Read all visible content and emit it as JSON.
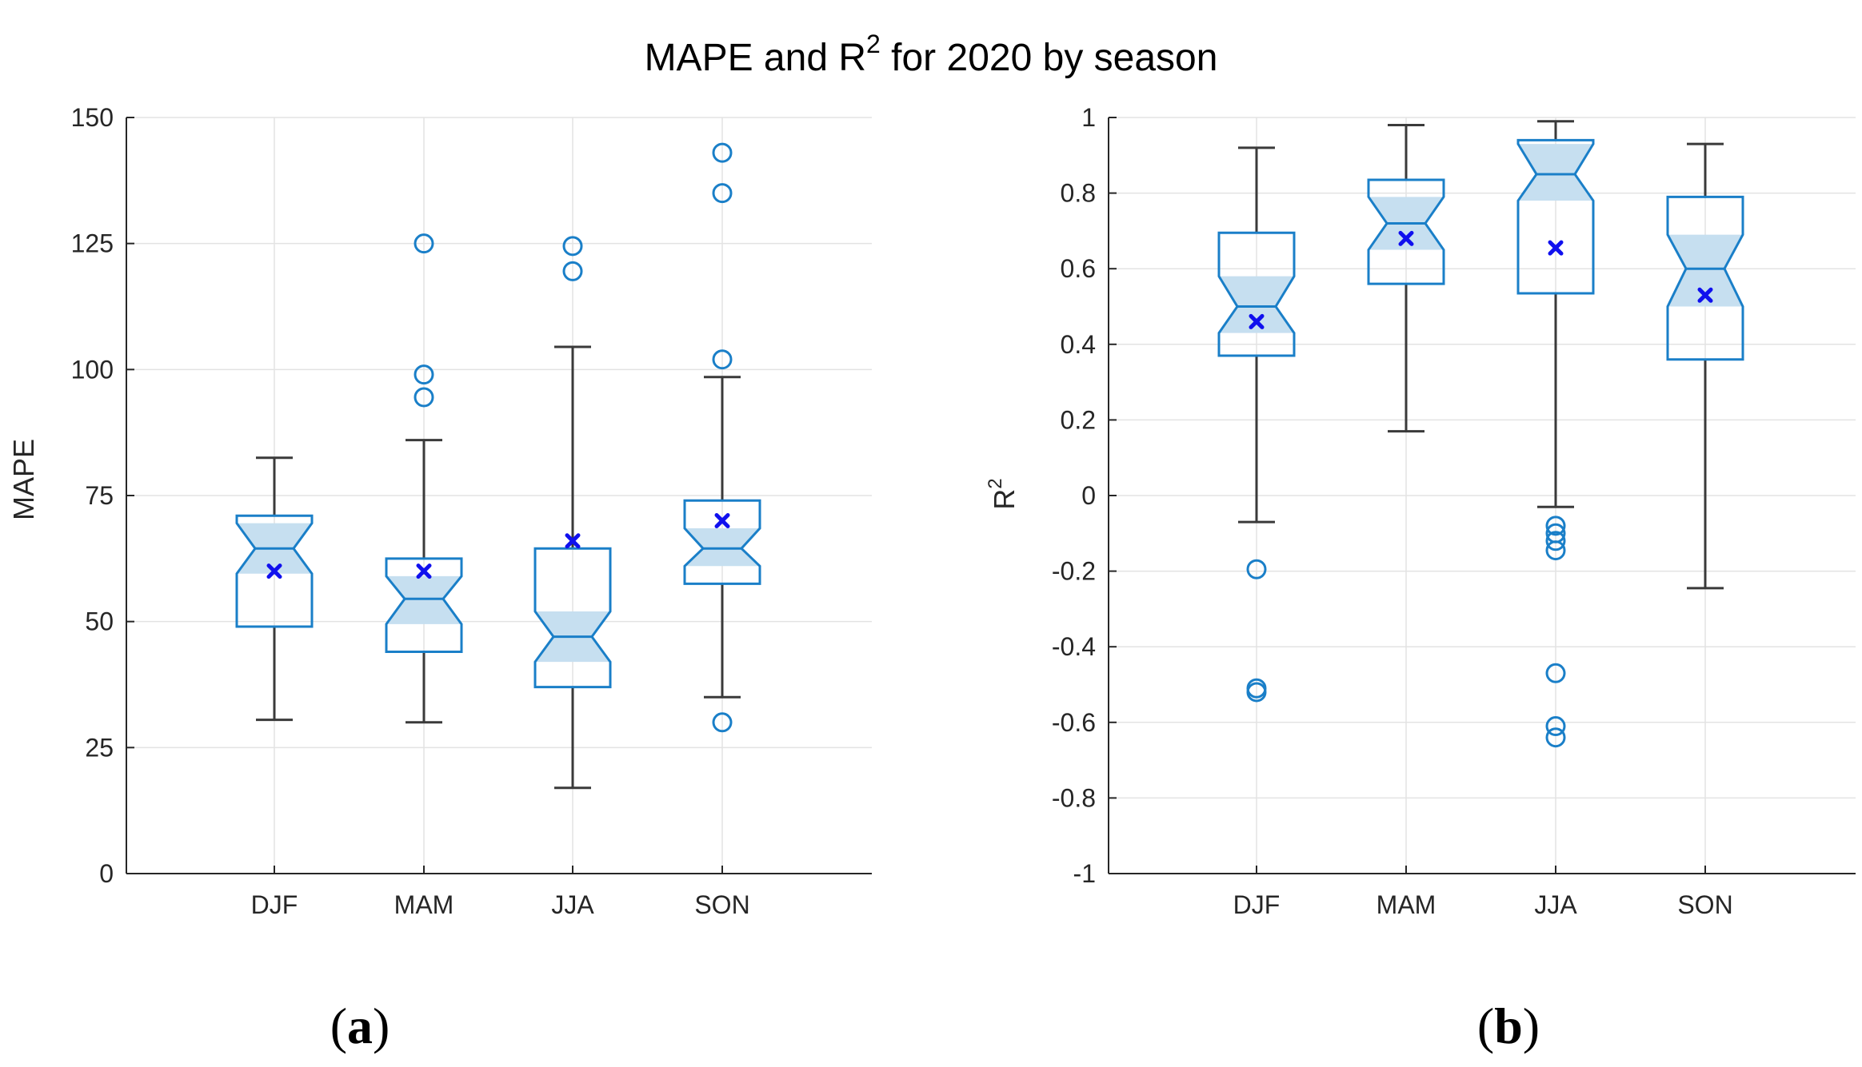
{
  "title": {
    "prefix": "MAPE and R",
    "superscript": "2",
    "suffix": " for 2020 by season"
  },
  "colors": {
    "box": "#1a7fc8",
    "notch_fill": "#c6dff0",
    "whisker": "#3a3a3a",
    "mean_marker": "#1010ee",
    "grid": "#e3e3e3",
    "axis": "#262626"
  },
  "chart_data": [
    {
      "type": "box",
      "panel_label_paren_open": "(",
      "panel_label": "a",
      "panel_label_paren_close": ")",
      "ylabel": "MAPE",
      "ylabel_sup": "",
      "xlabel": "",
      "ylim": [
        0,
        150
      ],
      "yticks": [
        0,
        25,
        50,
        75,
        100,
        125,
        150
      ],
      "ytick_labels": [
        "0",
        "25",
        "50",
        "75",
        "100",
        "125",
        "150"
      ],
      "categories": [
        "DJF",
        "MAM",
        "JJA",
        "SON"
      ],
      "grid": true,
      "boxes": [
        {
          "season": "DJF",
          "whisker_low": 30.5,
          "q1": 49,
          "median": 64.5,
          "q3": 71,
          "whisker_high": 82.5,
          "notch_low": 59.5,
          "notch_high": 69.5,
          "mean": 60,
          "outliers": []
        },
        {
          "season": "MAM",
          "whisker_low": 30,
          "q1": 44,
          "median": 54.5,
          "q3": 62.5,
          "whisker_high": 86,
          "notch_low": 49.5,
          "notch_high": 59,
          "mean": 60,
          "outliers": [
            125,
            99,
            94.5
          ]
        },
        {
          "season": "JJA",
          "whisker_low": 17,
          "q1": 37,
          "median": 47,
          "q3": 64.5,
          "whisker_high": 104.5,
          "notch_low": 42,
          "notch_high": 52,
          "mean": 66,
          "outliers": [
            124.5,
            119.5
          ]
        },
        {
          "season": "SON",
          "whisker_low": 35,
          "q1": 57.5,
          "median": 64.5,
          "q3": 74,
          "whisker_high": 98.5,
          "notch_low": 61,
          "notch_high": 68.5,
          "mean": 70,
          "outliers": [
            143,
            135,
            102,
            30
          ]
        }
      ]
    },
    {
      "type": "box",
      "panel_label_paren_open": "(",
      "panel_label": "b",
      "panel_label_paren_close": ")",
      "ylabel": "R",
      "ylabel_sup": "2",
      "xlabel": "",
      "ylim": [
        -1,
        1
      ],
      "yticks": [
        -1,
        -0.8,
        -0.6,
        -0.4,
        -0.2,
        0,
        0.2,
        0.4,
        0.6,
        0.8,
        1
      ],
      "ytick_labels": [
        "-1",
        "-0.8",
        "-0.6",
        "-0.4",
        "-0.2",
        "0",
        "0.2",
        "0.4",
        "0.6",
        "0.8",
        "1"
      ],
      "categories": [
        "DJF",
        "MAM",
        "JJA",
        "SON"
      ],
      "grid": true,
      "boxes": [
        {
          "season": "DJF",
          "whisker_low": -0.07,
          "q1": 0.37,
          "median": 0.5,
          "q3": 0.695,
          "whisker_high": 0.92,
          "notch_low": 0.43,
          "notch_high": 0.58,
          "mean": 0.46,
          "outliers": [
            -0.195,
            -0.51,
            -0.52
          ]
        },
        {
          "season": "MAM",
          "whisker_low": 0.17,
          "q1": 0.56,
          "median": 0.72,
          "q3": 0.835,
          "whisker_high": 0.98,
          "notch_low": 0.65,
          "notch_high": 0.79,
          "mean": 0.68,
          "outliers": []
        },
        {
          "season": "JJA",
          "whisker_low": -0.03,
          "q1": 0.535,
          "median": 0.85,
          "q3": 0.94,
          "whisker_high": 0.99,
          "notch_low": 0.78,
          "notch_high": 0.93,
          "mean": 0.655,
          "outliers": [
            -0.08,
            -0.1,
            -0.12,
            -0.145,
            -0.47,
            -0.61,
            -0.64
          ]
        },
        {
          "season": "SON",
          "whisker_low": -0.245,
          "q1": 0.36,
          "median": 0.6,
          "q3": 0.79,
          "whisker_high": 0.93,
          "notch_low": 0.5,
          "notch_high": 0.69,
          "mean": 0.53,
          "outliers": []
        }
      ]
    }
  ]
}
